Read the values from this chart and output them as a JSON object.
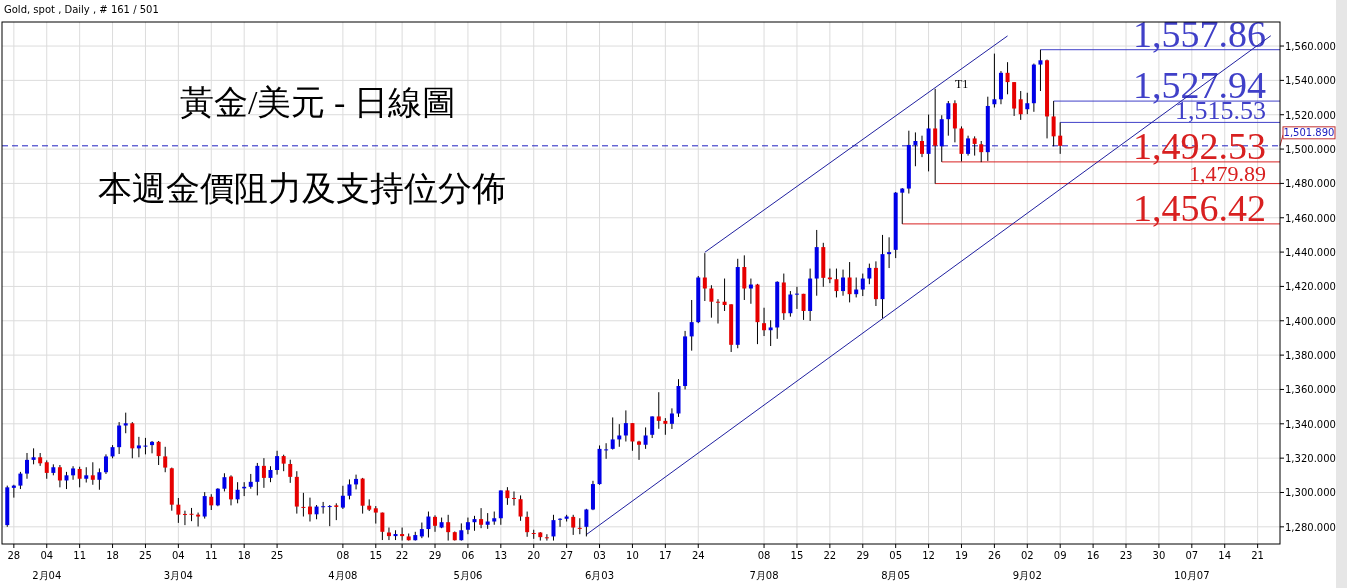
{
  "chart_data": {
    "type": "candlestick",
    "title": "Gold, spot , Daily , # 161 / 501",
    "annotations": [
      "黃金/美元 - 日線圖",
      "本週金價阻力及支持位分佈",
      "T1"
    ],
    "categories": [
      null,
      "28",
      null,
      null,
      null,
      null,
      "04\n2月04",
      null,
      null,
      null,
      null,
      "11",
      null,
      null,
      null,
      null,
      "18",
      null,
      null,
      null,
      null,
      "25",
      null,
      null,
      null,
      null,
      "04\n3月04",
      null,
      null,
      null,
      null,
      "11",
      null,
      null,
      null,
      null,
      "18",
      null,
      null,
      null,
      null,
      "25",
      null,
      null,
      null,
      null,
      null,
      null,
      null,
      null,
      null,
      "08\n4月08",
      null,
      null,
      null,
      null,
      "15",
      null,
      null,
      null,
      "22",
      null,
      null,
      null,
      null,
      "29",
      null,
      null,
      null,
      null,
      "06\n5月06",
      null,
      null,
      null,
      null,
      "13",
      null,
      null,
      null,
      null,
      "20",
      null,
      null,
      null,
      null,
      "27",
      null,
      null,
      null,
      null,
      "03\n6月03",
      null,
      null,
      null,
      null,
      "10",
      null,
      null,
      null,
      null,
      "17",
      null,
      null,
      null,
      null,
      "24",
      null,
      null,
      null,
      null,
      null,
      null,
      null,
      null,
      null,
      "08\n7月08",
      null,
      null,
      null,
      null,
      "15",
      null,
      null,
      null,
      null,
      "22",
      null,
      null,
      null,
      null,
      "29",
      null,
      null,
      null,
      null,
      "05\n8月05",
      null,
      null,
      null,
      null,
      "12",
      null,
      null,
      null,
      null,
      "19",
      null,
      null,
      null,
      null,
      "26",
      null,
      null,
      null,
      null,
      "02\n9月02",
      null,
      null,
      null,
      null,
      "09",
      null,
      null,
      null,
      null,
      "16",
      null,
      null,
      null,
      null,
      "23",
      null,
      null,
      null,
      null,
      "30",
      null,
      null,
      null,
      null,
      "07\n10月07",
      null,
      null,
      null,
      null,
      "14",
      null,
      null,
      null,
      null,
      "21",
      null,
      null,
      null
    ],
    "ohlc": [
      [
        1281,
        1304,
        1280,
        1303
      ],
      [
        1302.7,
        1304.5,
        1297,
        1304
      ],
      [
        1304,
        1312,
        1302,
        1311
      ],
      [
        1311,
        1323,
        1308,
        1319
      ],
      [
        1319,
        1325.7,
        1316.4,
        1320.5
      ],
      [
        1320.5,
        1323,
        1315.5,
        1317
      ],
      [
        1317.6,
        1318.7,
        1308,
        1311.4
      ],
      [
        1311.4,
        1316.4,
        1310,
        1314.7
      ],
      [
        1314.7,
        1316,
        1303,
        1307
      ],
      [
        1307,
        1312,
        1302,
        1310
      ],
      [
        1310,
        1315.3,
        1307.4,
        1314
      ],
      [
        1313.7,
        1315,
        1303,
        1308
      ],
      [
        1308,
        1314.7,
        1305.8,
        1310
      ],
      [
        1310,
        1317.6,
        1304.5,
        1307.4
      ],
      [
        1307.4,
        1314,
        1301.6,
        1311.8
      ],
      [
        1311.8,
        1322.2,
        1310.8,
        1321
      ],
      [
        1321,
        1327.6,
        1319.9,
        1326.4
      ],
      [
        1326.4,
        1341,
        1322.4,
        1339
      ],
      [
        1339,
        1346.5,
        1334.5,
        1340.3
      ],
      [
        1340.3,
        1341,
        1319.9,
        1325.7
      ],
      [
        1325.7,
        1332.4,
        1320.5,
        1327.4
      ],
      [
        1327.2,
        1331.8,
        1322.2,
        1327.3
      ],
      [
        1327.6,
        1330,
        1322.8,
        1329.5
      ],
      [
        1329.5,
        1330,
        1316,
        1321.2
      ],
      [
        1321,
        1326.6,
        1311.8,
        1314.5
      ],
      [
        1314.1,
        1314.5,
        1289.4,
        1292.9
      ],
      [
        1292.9,
        1296.8,
        1282.3,
        1287.1
      ],
      [
        1287.5,
        1289.4,
        1281,
        1287.4
      ],
      [
        1287.6,
        1291,
        1283.3,
        1287.5
      ],
      [
        1287.1,
        1288.3,
        1280.2,
        1286
      ],
      [
        1286,
        1300.2,
        1284.8,
        1297.9
      ],
      [
        1297.5,
        1299,
        1289.8,
        1292.5
      ],
      [
        1292.5,
        1302.5,
        1292,
        1302.2
      ],
      [
        1302.2,
        1311.2,
        1300.6,
        1308.9
      ],
      [
        1309.3,
        1310,
        1292.5,
        1296
      ],
      [
        1296,
        1306,
        1293.7,
        1301.6
      ],
      [
        1302.4,
        1306,
        1297.9,
        1303.3
      ],
      [
        1303.3,
        1310.8,
        1302.2,
        1306.2
      ],
      [
        1306.2,
        1317.2,
        1298.3,
        1315.5
      ],
      [
        1315.5,
        1320,
        1302.7,
        1308.5
      ],
      [
        1308.5,
        1315.3,
        1306,
        1313.1
      ],
      [
        1313.1,
        1324.3,
        1310.4,
        1321.2
      ],
      [
        1321.2,
        1322,
        1312.4,
        1316.8
      ],
      [
        1316.6,
        1319.1,
        1305.6,
        1309.1
      ],
      [
        1309.1,
        1312.4,
        1287.7,
        1291.8
      ],
      [
        1291.6,
        1299.8,
        1286,
        1291.5
      ],
      [
        1291.8,
        1297,
        1283.1,
        1287.3
      ],
      [
        1287.3,
        1292.7,
        1284.4,
        1291.8
      ],
      [
        1291.9,
        1294.5,
        1287.7,
        1292
      ],
      [
        1291.8,
        1292.7,
        1280.4,
        1292.1
      ],
      [
        1292.5,
        1293.7,
        1283.9,
        1291.6
      ],
      [
        1291.2,
        1303.9,
        1290.4,
        1298.1
      ],
      [
        1298.1,
        1307.6,
        1296,
        1304.7
      ],
      [
        1304.7,
        1310.4,
        1301.8,
        1307.9
      ],
      [
        1308.1,
        1308.5,
        1287.7,
        1292.3
      ],
      [
        1292.3,
        1296,
        1289.2,
        1290
      ],
      [
        1290.8,
        1292.1,
        1281.9,
        1288.3
      ],
      [
        1288.3,
        1288.3,
        1272.3,
        1277.1
      ],
      [
        1276.7,
        1279.6,
        1272.3,
        1274.6
      ],
      [
        1274.6,
        1278,
        1272.3,
        1275.8
      ],
      [
        1275.8,
        1279.6,
        1272,
        1274.6
      ],
      [
        1274.4,
        1276.1,
        1272,
        1272.2
      ],
      [
        1272.2,
        1277.1,
        1272,
        1275.2
      ],
      [
        1274.4,
        1282.5,
        1273.4,
        1278.7
      ],
      [
        1278.7,
        1288.9,
        1273.8,
        1286
      ],
      [
        1285.8,
        1286.7,
        1277.1,
        1280.6
      ],
      [
        1279.6,
        1285.4,
        1279.2,
        1282.7
      ],
      [
        1282.7,
        1287,
        1272,
        1276.9
      ],
      [
        1276.9,
        1277.3,
        1272,
        1272.2
      ],
      [
        1272.2,
        1282,
        1272,
        1278
      ],
      [
        1278.3,
        1285.4,
        1275.7,
        1282.7
      ],
      [
        1282.7,
        1286.4,
        1277.7,
        1284.5
      ],
      [
        1284.5,
        1290.9,
        1279.2,
        1281.2
      ],
      [
        1281.2,
        1288,
        1278.8,
        1283.1
      ],
      [
        1283.1,
        1288.9,
        1281.2,
        1285
      ],
      [
        1285,
        1301.2,
        1281.2,
        1301.2
      ],
      [
        1301.2,
        1303.1,
        1292.8,
        1296.7
      ],
      [
        1296.8,
        1300.6,
        1292.4,
        1296.6
      ],
      [
        1296.1,
        1298.3,
        1283.5,
        1286
      ],
      [
        1285.8,
        1288.9,
        1274.2,
        1276.9
      ],
      [
        1276.4,
        1278.3,
        1273,
        1276.2
      ],
      [
        1276.7,
        1276.9,
        1272,
        1274
      ],
      [
        1273.9,
        1275.7,
        1272,
        1273.8
      ],
      [
        1274.4,
        1287,
        1272,
        1283.9
      ],
      [
        1284.1,
        1285,
        1280,
        1284.7
      ],
      [
        1284.7,
        1287,
        1283.1,
        1286
      ],
      [
        1285.8,
        1287,
        1275.3,
        1279.6
      ],
      [
        1279.4,
        1285,
        1275.7,
        1279.1
      ],
      [
        1280,
        1290.5,
        1274.4,
        1290.1
      ],
      [
        1290.1,
        1306.8,
        1289.7,
        1304.9
      ],
      [
        1304.9,
        1327.4,
        1304.5,
        1325.4
      ],
      [
        1325,
        1328.7,
        1319.6,
        1325.1
      ],
      [
        1325.4,
        1343.7,
        1325,
        1330.9
      ],
      [
        1330.9,
        1339.8,
        1326.6,
        1333.2
      ],
      [
        1333.2,
        1347.8,
        1329.7,
        1340.4
      ],
      [
        1340.4,
        1340.4,
        1324.3,
        1329.7
      ],
      [
        1329.7,
        1330.1,
        1319,
        1327.8
      ],
      [
        1327.8,
        1337.9,
        1325.4,
        1333.2
      ],
      [
        1333.6,
        1344.3,
        1331.7,
        1344.3
      ],
      [
        1344.3,
        1358.4,
        1337.1,
        1341.7
      ],
      [
        1341.7,
        1343.3,
        1333.6,
        1340
      ],
      [
        1340,
        1349,
        1337,
        1346
      ],
      [
        1346,
        1366,
        1344,
        1362
      ],
      [
        1362,
        1394.1,
        1360,
        1390.9
      ],
      [
        1390.9,
        1412.1,
        1382.6,
        1399.2
      ],
      [
        1399.2,
        1426.1,
        1398.6,
        1425.2
      ],
      [
        1425.2,
        1439.4,
        1411.5,
        1418.8
      ],
      [
        1418.8,
        1420.7,
        1401.8,
        1411.1
      ],
      [
        1411.1,
        1412.6,
        1398.4,
        1410.9
      ],
      [
        1411.1,
        1424.6,
        1405.7,
        1409.2
      ],
      [
        1409.6,
        1409.6,
        1381.8,
        1386
      ],
      [
        1386,
        1436.1,
        1384,
        1431.3
      ],
      [
        1431.3,
        1438.1,
        1412.1,
        1418.8
      ],
      [
        1418.8,
        1424.6,
        1409.9,
        1421.1
      ],
      [
        1421.1,
        1421.5,
        1386.4,
        1399.2
      ],
      [
        1398.6,
        1407.6,
        1391.1,
        1394.5
      ],
      [
        1394.5,
        1400.3,
        1385.3,
        1396.1
      ],
      [
        1396.1,
        1423,
        1389.5,
        1422.7
      ],
      [
        1422.3,
        1427.5,
        1400.5,
        1404.4
      ],
      [
        1404.4,
        1417.3,
        1402.4,
        1415.3
      ],
      [
        1415.6,
        1419.8,
        1406.9,
        1415.8
      ],
      [
        1415.7,
        1415.7,
        1400.5,
        1405.7
      ],
      [
        1405.7,
        1430.4,
        1399.9,
        1424.6
      ],
      [
        1424.6,
        1452.9,
        1414.6,
        1442.9
      ],
      [
        1442.9,
        1445.4,
        1419.8,
        1425
      ],
      [
        1425.2,
        1430.4,
        1421.9,
        1424.2
      ],
      [
        1424.2,
        1430.4,
        1413.6,
        1417.3
      ],
      [
        1417.3,
        1429.8,
        1414.6,
        1425.2
      ],
      [
        1425.2,
        1434.2,
        1410.7,
        1415.5
      ],
      [
        1415.5,
        1425.2,
        1413.6,
        1418.2
      ],
      [
        1418.2,
        1427.5,
        1414.4,
        1424.6
      ],
      [
        1424.6,
        1433.3,
        1421.3,
        1430.8
      ],
      [
        1430.8,
        1434.6,
        1408.6,
        1412.6
      ],
      [
        1412.6,
        1450,
        1401.5,
        1438.8
      ],
      [
        1438.8,
        1448.6,
        1430.7,
        1440
      ],
      [
        1441.3,
        1475,
        1436.5,
        1474.6
      ],
      [
        1474.6,
        1477.3,
        1456.42,
        1477
      ],
      [
        1477,
        1510.7,
        1474.1,
        1502.4
      ],
      [
        1502.4,
        1509.7,
        1490,
        1504.7
      ],
      [
        1504.7,
        1507.8,
        1495.3,
        1497.2
      ],
      [
        1497.2,
        1520.1,
        1487,
        1512
      ],
      [
        1512,
        1535.1,
        1479.89,
        1502
      ],
      [
        1501.6,
        1519.7,
        1492.53,
        1517.4
      ],
      [
        1517.4,
        1528,
        1507.8,
        1526.7
      ],
      [
        1526.7,
        1528.4,
        1503.9,
        1512
      ],
      [
        1512,
        1513.2,
        1492.8,
        1497.2
      ],
      [
        1497.2,
        1507.8,
        1496.2,
        1506.2
      ],
      [
        1506.2,
        1507.4,
        1496.2,
        1503
      ],
      [
        1502.8,
        1504.7,
        1492.4,
        1498.2
      ],
      [
        1498.2,
        1530.5,
        1493.1,
        1525.1
      ],
      [
        1526.1,
        1555.6,
        1524.2,
        1529
      ],
      [
        1529,
        1545.4,
        1526.1,
        1544.4
      ],
      [
        1544.4,
        1550.6,
        1531.9,
        1539
      ],
      [
        1539,
        1539,
        1519.3,
        1523.6
      ],
      [
        1529,
        1533.8,
        1517,
        1520.3
      ],
      [
        1523.2,
        1532.8,
        1520.3,
        1526.7
      ],
      [
        1526.7,
        1549.8,
        1521.7,
        1549.2
      ],
      [
        1549.2,
        1557.86,
        1533.8,
        1551.7
      ],
      [
        1551.7,
        1552.1,
        1506.2,
        1519
      ],
      [
        1519,
        1527.94,
        1501.6,
        1507.4
      ],
      [
        1507.8,
        1515.53,
        1497.2,
        1501.89
      ],
      null,
      null,
      null,
      null,
      null,
      null,
      null,
      null,
      null,
      null,
      null,
      null,
      null,
      null,
      null,
      null,
      null,
      null,
      null,
      null,
      null,
      null,
      null,
      null,
      null,
      null,
      null,
      null,
      null,
      null,
      null,
      null,
      null
    ],
    "series": [
      {
        "type": "line",
        "color": "#2020a0",
        "values": [
          null,
          null,
          null,
          null,
          null,
          null,
          null,
          null,
          null,
          null,
          null,
          null,
          null,
          null,
          null,
          null,
          null,
          null,
          null,
          null,
          null,
          null,
          null,
          null,
          null,
          null,
          null,
          null,
          null,
          null,
          null,
          null,
          null,
          null,
          null,
          null,
          null,
          null,
          null,
          null,
          null,
          null,
          null,
          null,
          null,
          null,
          null,
          null,
          null,
          null,
          null,
          null,
          null,
          null,
          null,
          null,
          null,
          null,
          null,
          null,
          null,
          null,
          null,
          null,
          null,
          null,
          null,
          null,
          null,
          null,
          null,
          null,
          null,
          null,
          null,
          null,
          null,
          null,
          null,
          null,
          null,
          null,
          null,
          null,
          null,
          null,
          null,
          null,
          null,
          null,
          null,
          null,
          null,
          null,
          null,
          null,
          null,
          null,
          null,
          null,
          null,
          null,
          null,
          null,
          null,
          null,
          1439.9,
          null,
          null,
          null,
          null,
          null,
          null,
          null,
          null,
          null,
          null,
          null,
          null,
          null,
          null,
          null,
          null,
          null,
          null,
          null,
          null,
          null,
          null,
          null,
          null,
          null,
          null,
          null,
          null,
          null,
          null,
          null,
          null,
          null,
          null,
          null,
          null,
          null,
          null,
          null,
          null,
          null,
          null,
          null,
          null,
          null,
          1565.9,
          null,
          null,
          null,
          null,
          null,
          null,
          null,
          null,
          null,
          null,
          null,
          null,
          null,
          null,
          null,
          null,
          null,
          null,
          null,
          null,
          null,
          null,
          null,
          null,
          null,
          null,
          null,
          null,
          null,
          null,
          null,
          null,
          null,
          null,
          null,
          null,
          null,
          null,
          null,
          null,
          null
        ]
      },
      {
        "type": "line",
        "color": "#2020a0",
        "values": [
          null,
          null,
          null,
          null,
          null,
          null,
          null,
          null,
          null,
          null,
          null,
          null,
          null,
          null,
          null,
          null,
          null,
          null,
          null,
          null,
          null,
          null,
          null,
          null,
          null,
          null,
          null,
          null,
          null,
          null,
          null,
          null,
          null,
          null,
          null,
          null,
          null,
          null,
          null,
          null,
          null,
          null,
          null,
          null,
          null,
          null,
          null,
          null,
          null,
          null,
          null,
          null,
          null,
          null,
          null,
          null,
          null,
          null,
          null,
          null,
          null,
          null,
          null,
          null,
          null,
          null,
          null,
          null,
          null,
          null,
          null,
          null,
          null,
          null,
          null,
          null,
          null,
          null,
          null,
          null,
          null,
          null,
          null,
          null,
          null,
          null,
          null,
          null,
          1275.5,
          null,
          null,
          null,
          null,
          null,
          null,
          null,
          null,
          null,
          null,
          null,
          null,
          null,
          null,
          null,
          null,
          null,
          null,
          null,
          null,
          null,
          null,
          null,
          null,
          null,
          null,
          null,
          null,
          null,
          null,
          null,
          null,
          null,
          null,
          null,
          null,
          null,
          null,
          null,
          null,
          null,
          null,
          null,
          null,
          null,
          null,
          null,
          null,
          null,
          null,
          null,
          null,
          null,
          null,
          null,
          null,
          null,
          null,
          null,
          null,
          null,
          null,
          null,
          null,
          null,
          null,
          null,
          null,
          null,
          null,
          null,
          null,
          null,
          null,
          null,
          null,
          null,
          null,
          null,
          null,
          null,
          null,
          null,
          null,
          null,
          null,
          null,
          null,
          null,
          null,
          null,
          null,
          null,
          null,
          null,
          null,
          null,
          null,
          null,
          null,
          null,
          null,
          null,
          1566.0,
          null
        ]
      }
    ],
    "ref_lines": [
      {
        "axis": "y",
        "value": 1557.86,
        "label": "1,557.86",
        "color": "#4040c8"
      },
      {
        "axis": "y",
        "value": 1527.94,
        "label": "1,527.94",
        "color": "#4040c8"
      },
      {
        "axis": "y",
        "value": 1515.53,
        "label": "1,515.53",
        "color": "#4040c8"
      },
      {
        "axis": "y",
        "value": 1501.89,
        "label": "1,501.890",
        "color": "#2020c0",
        "line_style": "dashed"
      },
      {
        "axis": "y",
        "value": 1492.53,
        "label": "1,492.53",
        "color": "#d82020"
      },
      {
        "axis": "y",
        "value": 1479.89,
        "label": "1,479.89",
        "color": "#d82020"
      },
      {
        "axis": "y",
        "value": 1456.42,
        "label": "1,456.42",
        "color": "#d82020"
      }
    ],
    "ylim": [
      1270,
      1574
    ],
    "yticks": [
      {
        "value": 1280,
        "label": "1,280.000"
      },
      {
        "value": 1300,
        "label": "1,300.000"
      },
      {
        "value": 1320,
        "label": "1,320.000"
      },
      {
        "value": 1340,
        "label": "1,340.000"
      },
      {
        "value": 1360,
        "label": "1,360.000"
      },
      {
        "value": 1380,
        "label": "1,380.000"
      },
      {
        "value": 1400,
        "label": "1,400.000"
      },
      {
        "value": 1420,
        "label": "1,420.000"
      },
      {
        "value": 1440,
        "label": "1,440.000"
      },
      {
        "value": 1460,
        "label": "1,460.000"
      },
      {
        "value": 1480,
        "label": "1,480.000"
      },
      {
        "value": 1500,
        "label": "1,500.000"
      },
      {
        "value": 1520,
        "label": "1,520.000"
      },
      {
        "value": 1540,
        "label": "1,540.000"
      },
      {
        "value": 1560,
        "label": "1,560.000"
      }
    ],
    "grid": true
  }
}
